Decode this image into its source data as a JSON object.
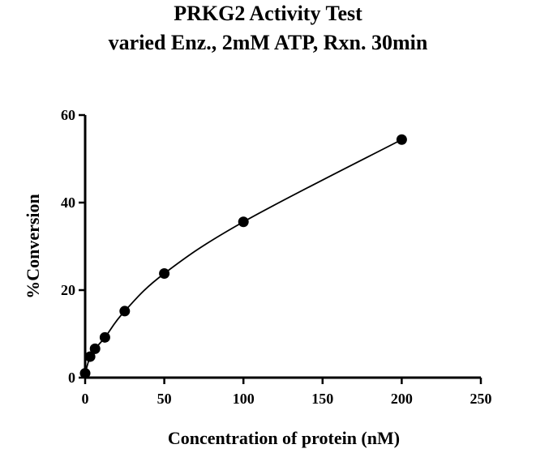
{
  "chart_data": {
    "type": "scatter",
    "title": "PRKG2 Activity Test",
    "subtitle": "varied Enz., 2mM ATP, Rxn. 30min",
    "xlabel": "Concentration of protein (nM)",
    "ylabel": "%Conversion",
    "xlim": [
      0,
      250
    ],
    "ylim": [
      0,
      60
    ],
    "x_ticks": [
      "0",
      "50",
      "100",
      "150",
      "200",
      "250"
    ],
    "y_ticks": [
      "0",
      "20",
      "40",
      "60"
    ],
    "grid": false,
    "connect_points": true,
    "marker": "filled-circle",
    "color": "#000000",
    "series": [
      {
        "x": [
          0,
          3.125,
          6.25,
          12.5,
          25,
          50,
          100,
          200
        ],
        "y": [
          1.0,
          4.8,
          6.6,
          9.2,
          15.2,
          23.8,
          35.6,
          54.4
        ]
      }
    ]
  }
}
